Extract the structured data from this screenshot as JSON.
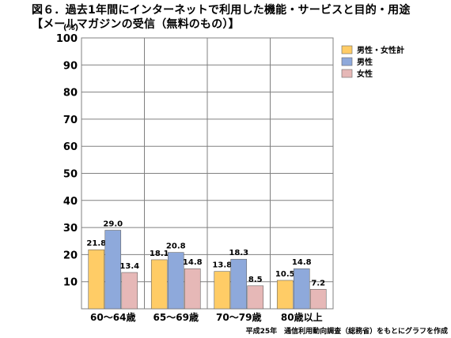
{
  "title": {
    "line1": "図６．過去1年間にインターネットで利用した機能・サービスと目的・用途",
    "line2": "【メールマガジンの受信（無料のもの）】"
  },
  "source_note": "平成25年　通信利用動向調査（総務省）をもとにグラフを作成",
  "chart_data": {
    "type": "bar",
    "ylabel": "(%)",
    "ylim": [
      0,
      100
    ],
    "yticks": [
      10,
      20,
      30,
      40,
      50,
      60,
      70,
      80,
      90,
      100
    ],
    "grid": true,
    "legend_position": "top-right",
    "categories": [
      "60～64歳",
      "65～69歳",
      "70～79歳",
      "80歳以上"
    ],
    "series": [
      {
        "name": "男性・女性計",
        "color": "#FFCC66",
        "values": [
          21.8,
          18.1,
          13.8,
          10.5
        ]
      },
      {
        "name": "男性",
        "color": "#8EA9DB",
        "values": [
          29.0,
          20.8,
          18.3,
          14.8
        ]
      },
      {
        "name": "女性",
        "color": "#E6B8B7",
        "values": [
          13.4,
          14.8,
          8.5,
          7.2
        ]
      }
    ]
  }
}
